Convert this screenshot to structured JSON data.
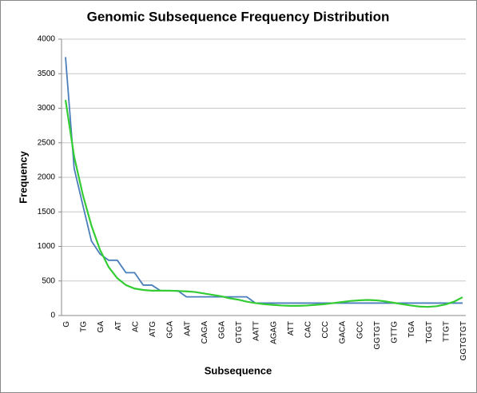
{
  "chart_data": {
    "type": "line",
    "title": "Genomic Subsequence Frequency Distribution",
    "x_label": "Subsequence",
    "y_label": "Frequency",
    "categories": [
      "G",
      null,
      "TG",
      null,
      "GA",
      null,
      "AT",
      null,
      "AC",
      null,
      "ATG",
      null,
      "GCA",
      null,
      "AAT",
      null,
      "CAGA",
      null,
      "GGA",
      null,
      "GTGT",
      null,
      "AATT",
      null,
      "AGAG",
      null,
      "ATT",
      null,
      "CAC",
      null,
      "CCC",
      null,
      "GACA",
      null,
      "GCC",
      null,
      "GGTGT",
      null,
      "GTTG",
      null,
      "TGA",
      null,
      "TGGT",
      null,
      "TTGT",
      null,
      "GGTGTGT"
    ],
    "series": [
      {
        "color": "#4a7ebb",
        "values": [
          3740,
          2130,
          1600,
          1080,
          890,
          800,
          800,
          620,
          620,
          440,
          440,
          360,
          360,
          360,
          270,
          270,
          270,
          270,
          270,
          270,
          270,
          270,
          180,
          180,
          180,
          180,
          180,
          180,
          180,
          180,
          180,
          180,
          180,
          180,
          180,
          180,
          180,
          180,
          180,
          180,
          180,
          180,
          180,
          180,
          180,
          180,
          180
        ]
      },
      {
        "color": "#33cc33",
        "values": [
          3120,
          2300,
          1750,
          1300,
          950,
          700,
          540,
          440,
          390,
          370,
          360,
          360,
          360,
          355,
          350,
          340,
          320,
          300,
          280,
          250,
          230,
          200,
          180,
          165,
          155,
          145,
          140,
          140,
          145,
          155,
          165,
          180,
          195,
          210,
          220,
          225,
          220,
          205,
          185,
          165,
          145,
          130,
          125,
          135,
          160,
          200,
          265
        ]
      }
    ],
    "ylim": [
      0,
      4000
    ],
    "yticks": [
      0,
      500,
      1000,
      1500,
      2000,
      2500,
      3000,
      3500,
      4000
    ],
    "grid": true
  }
}
